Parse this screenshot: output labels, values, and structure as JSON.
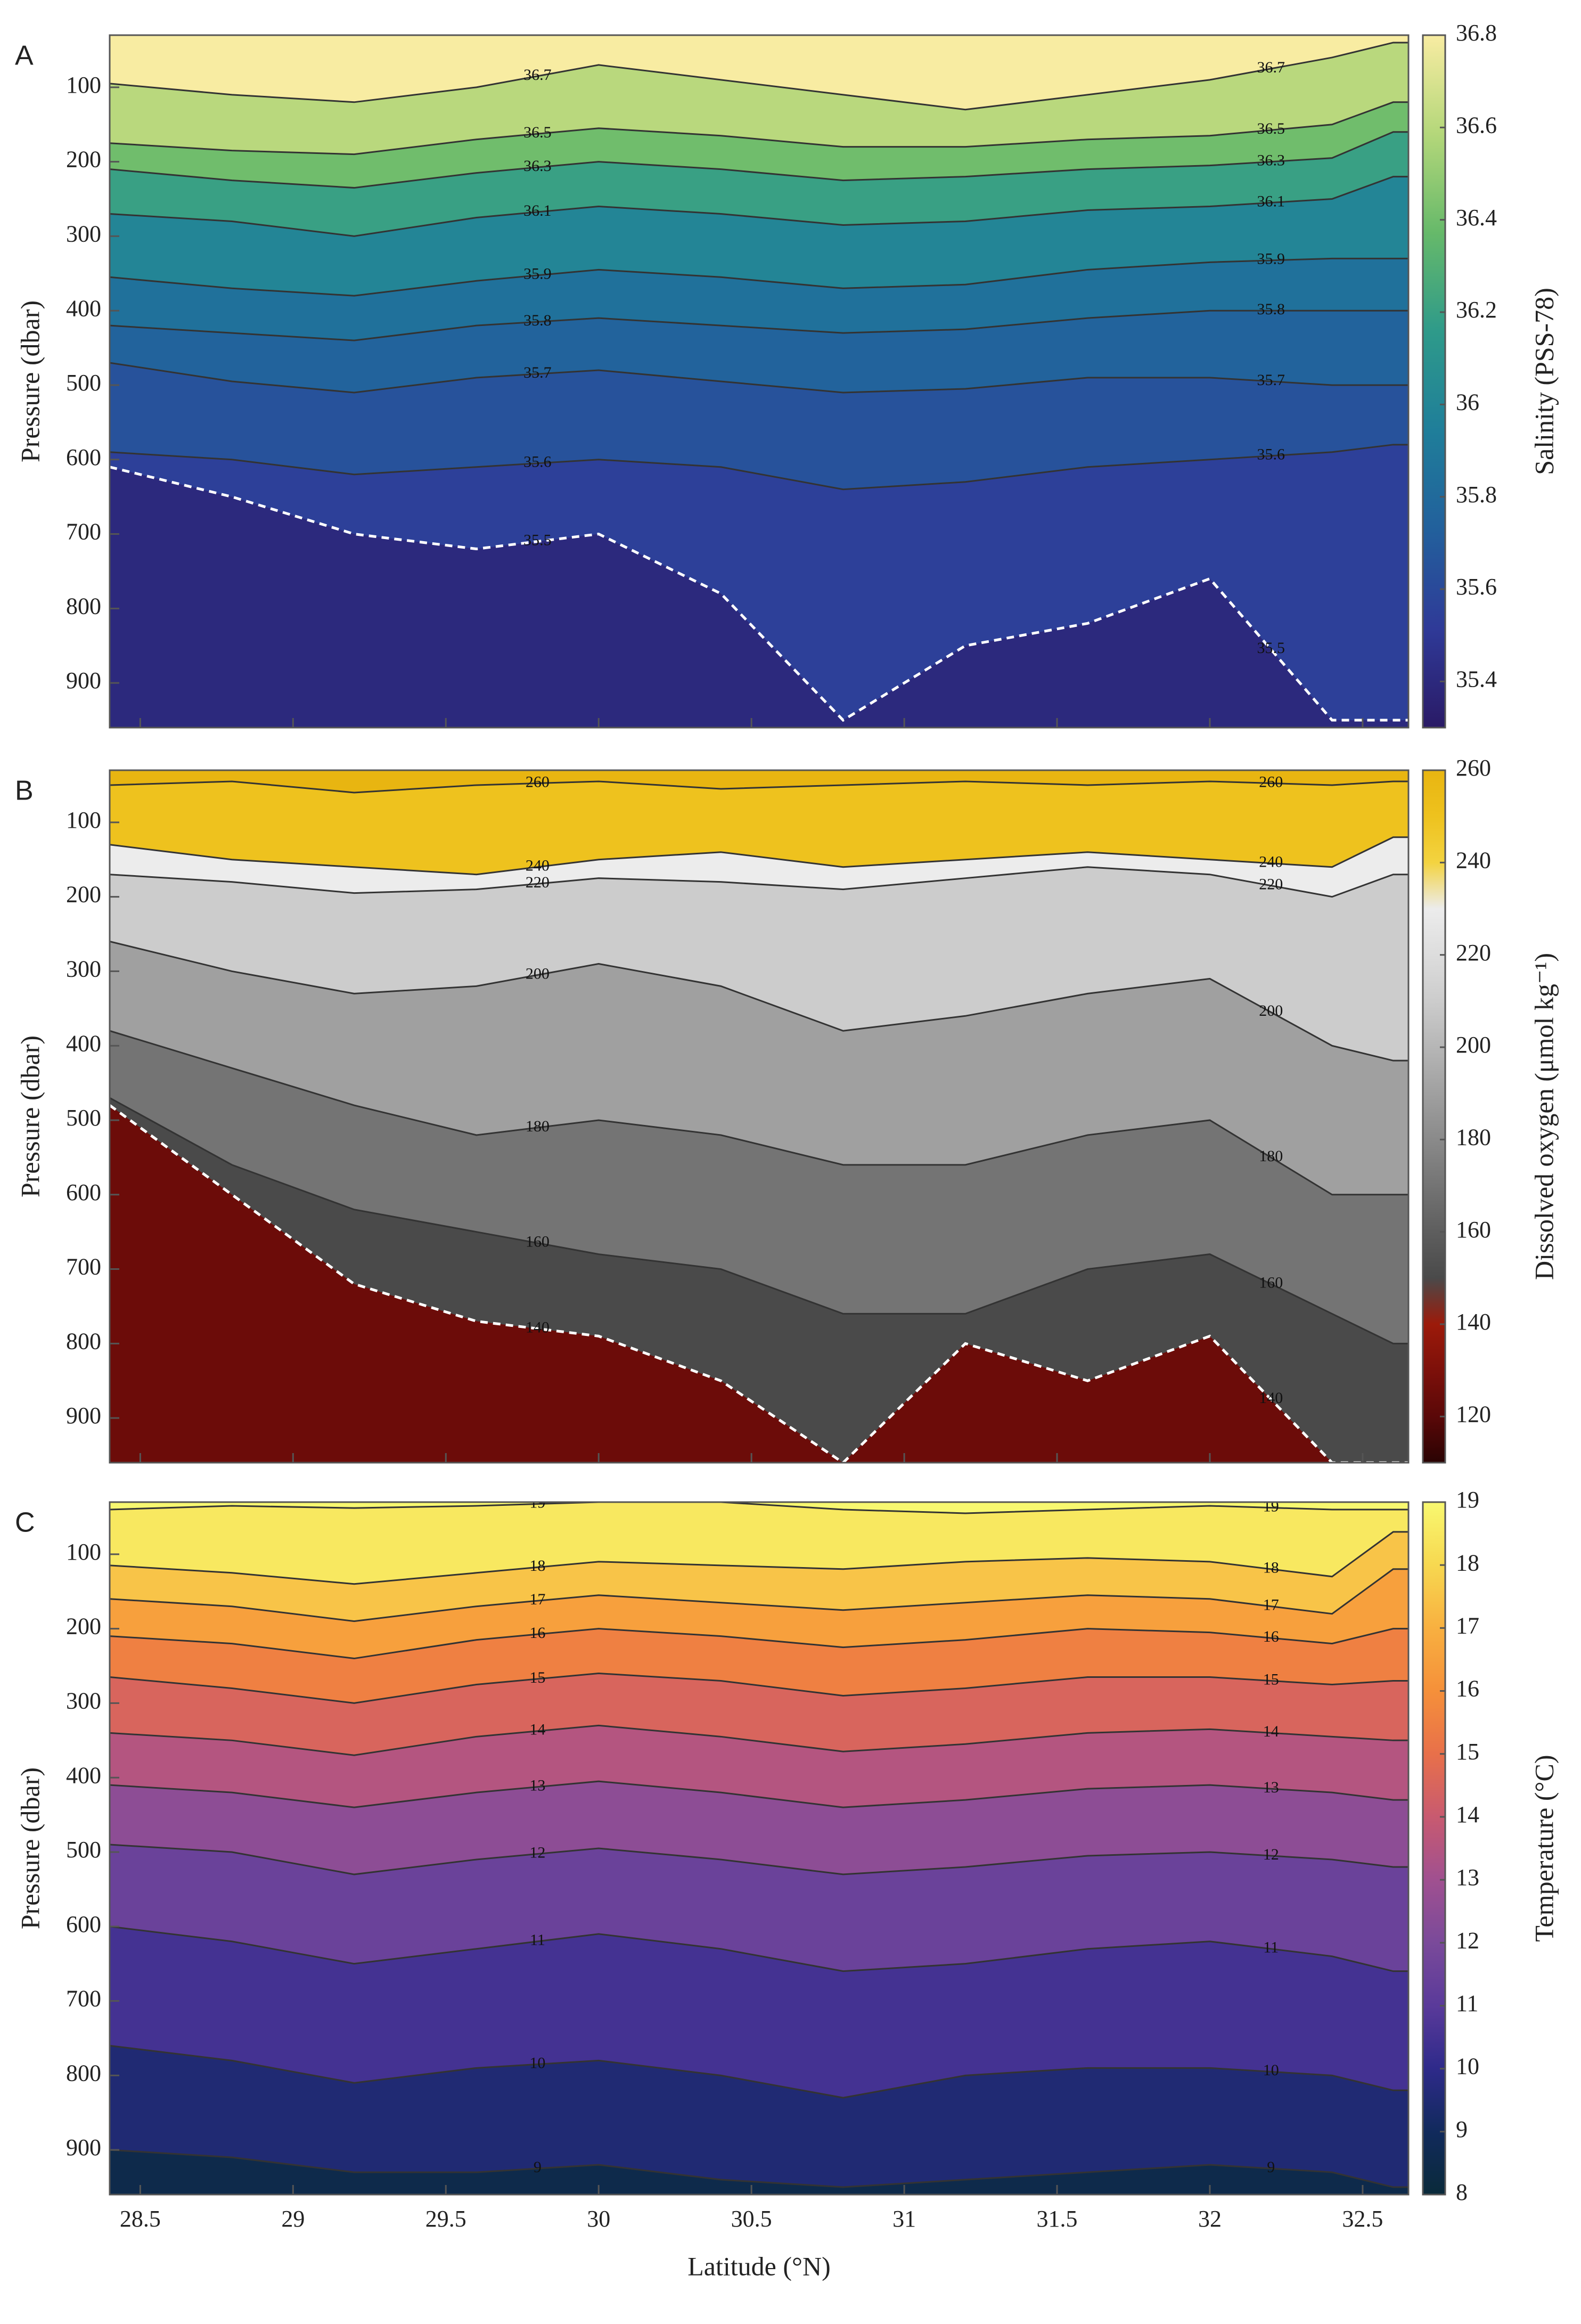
{
  "chart_data": [
    {
      "type": "contour",
      "panel_label": "A",
      "ylabel": "Pressure (dbar)",
      "clabel": "Salinity (PSS-78)",
      "x": [
        28.4,
        28.8,
        29.2,
        29.6,
        30.0,
        30.4,
        30.8,
        31.2,
        31.6,
        32.0,
        32.4,
        32.6
      ],
      "xlim": [
        28.4,
        32.65
      ],
      "xticks": [
        28.5,
        29,
        29.5,
        30,
        30.5,
        31,
        31.5,
        32,
        32.5
      ],
      "show_xticklabels": false,
      "ylim": [
        30,
        960
      ],
      "y_inverted": true,
      "yticks": [
        100,
        200,
        300,
        400,
        500,
        600,
        700,
        800,
        900
      ],
      "clim": [
        35.3,
        36.8
      ],
      "cticks": [
        35.4,
        35.6,
        35.8,
        36,
        36.2,
        36.4,
        36.6,
        36.8
      ],
      "colormap": [
        "#2a1a66",
        "#2f3a98",
        "#22609c",
        "#1f7e9a",
        "#2e9a8a",
        "#66b96a",
        "#b4d77a",
        "#f8eca2"
      ],
      "contours": [
        {
          "level": 36.7,
          "dashed": false,
          "values": [
            95,
            110,
            120,
            100,
            70,
            90,
            110,
            130,
            110,
            90,
            60,
            40
          ]
        },
        {
          "level": 36.5,
          "dashed": false,
          "values": [
            175,
            185,
            190,
            170,
            155,
            165,
            180,
            180,
            170,
            165,
            150,
            120
          ]
        },
        {
          "level": 36.3,
          "dashed": false,
          "values": [
            210,
            225,
            235,
            215,
            200,
            210,
            225,
            220,
            210,
            205,
            195,
            160
          ]
        },
        {
          "level": 36.1,
          "dashed": false,
          "values": [
            270,
            280,
            300,
            275,
            260,
            270,
            285,
            280,
            265,
            260,
            250,
            220
          ]
        },
        {
          "level": 35.9,
          "dashed": false,
          "values": [
            355,
            370,
            380,
            360,
            345,
            355,
            370,
            365,
            345,
            335,
            330,
            330
          ]
        },
        {
          "level": 35.8,
          "dashed": false,
          "values": [
            420,
            430,
            440,
            420,
            410,
            420,
            430,
            425,
            410,
            400,
            400,
            400
          ]
        },
        {
          "level": 35.7,
          "dashed": false,
          "values": [
            470,
            495,
            510,
            490,
            480,
            495,
            510,
            505,
            490,
            490,
            500,
            500
          ]
        },
        {
          "level": 35.6,
          "dashed": false,
          "values": [
            590,
            600,
            620,
            610,
            600,
            610,
            640,
            630,
            610,
            600,
            590,
            580
          ]
        },
        {
          "level": 35.5,
          "dashed": true,
          "values": [
            610,
            650,
            700,
            720,
            700,
            780,
            950,
            850,
            820,
            760,
            950,
            950
          ]
        }
      ]
    },
    {
      "type": "contour",
      "panel_label": "B",
      "ylabel": "Pressure (dbar)",
      "clabel": "Dissolved oxygen (μmol kg⁻¹)",
      "x": [
        28.4,
        28.8,
        29.2,
        29.6,
        30.0,
        30.4,
        30.8,
        31.2,
        31.6,
        32.0,
        32.4,
        32.6
      ],
      "xlim": [
        28.4,
        32.65
      ],
      "xticks": [
        28.5,
        29,
        29.5,
        30,
        30.5,
        31,
        31.5,
        32,
        32.5
      ],
      "show_xticklabels": false,
      "ylim": [
        30,
        960
      ],
      "y_inverted": true,
      "yticks": [
        100,
        200,
        300,
        400,
        500,
        600,
        700,
        800,
        900
      ],
      "clim": [
        110,
        260
      ],
      "cticks": [
        120,
        140,
        160,
        180,
        200,
        220,
        240,
        260
      ],
      "colormap": [
        "#2a0303",
        "#5a0808",
        "#7d100a",
        "#9c1a0a",
        "#4a4a4a",
        "#5e5e5e",
        "#747474",
        "#8a8a8a",
        "#a0a0a0",
        "#b6b6b6",
        "#cccccc",
        "#dddddd",
        "#ececec",
        "#f3d340",
        "#eec21e",
        "#e8b511"
      ],
      "contours": [
        {
          "level": 260,
          "dashed": false,
          "values": [
            50,
            45,
            60,
            50,
            45,
            55,
            50,
            45,
            50,
            45,
            50,
            45
          ]
        },
        {
          "level": 240,
          "dashed": false,
          "values": [
            130,
            150,
            160,
            170,
            150,
            140,
            160,
            150,
            140,
            150,
            160,
            120
          ]
        },
        {
          "level": 220,
          "dashed": false,
          "values": [
            170,
            180,
            195,
            190,
            175,
            180,
            190,
            175,
            160,
            170,
            200,
            170
          ]
        },
        {
          "level": 200,
          "dashed": false,
          "values": [
            260,
            300,
            330,
            320,
            290,
            320,
            380,
            360,
            330,
            310,
            400,
            420
          ]
        },
        {
          "level": 180,
          "dashed": false,
          "values": [
            380,
            430,
            480,
            520,
            500,
            520,
            560,
            560,
            520,
            500,
            600,
            600
          ]
        },
        {
          "level": 160,
          "dashed": false,
          "values": [
            470,
            560,
            620,
            650,
            680,
            700,
            760,
            760,
            700,
            680,
            760,
            800
          ]
        },
        {
          "level": 140,
          "dashed": true,
          "values": [
            480,
            600,
            720,
            770,
            790,
            850,
            960,
            800,
            850,
            790,
            960,
            960
          ]
        }
      ]
    },
    {
      "type": "contour",
      "panel_label": "C",
      "ylabel": "Pressure (dbar)",
      "clabel": "Temperature (°C)",
      "xlabel": "Latitude (°N)",
      "x": [
        28.4,
        28.8,
        29.2,
        29.6,
        30.0,
        30.4,
        30.8,
        31.2,
        31.6,
        32.0,
        32.4,
        32.6
      ],
      "xlim": [
        28.4,
        32.65
      ],
      "xticks": [
        28.5,
        29,
        29.5,
        30,
        30.5,
        31,
        31.5,
        32,
        32.5
      ],
      "show_xticklabels": true,
      "ylim": [
        30,
        960
      ],
      "y_inverted": true,
      "yticks": [
        100,
        200,
        300,
        400,
        500,
        600,
        700,
        800,
        900
      ],
      "clim": [
        8,
        19
      ],
      "cticks": [
        8,
        9,
        10,
        11,
        12,
        13,
        14,
        15,
        16,
        17,
        18,
        19
      ],
      "colormap": [
        "#0a2a3a",
        "#112a5c",
        "#2e2a8a",
        "#5a3a9a",
        "#7a4a9a",
        "#a05090",
        "#c85a70",
        "#e8704a",
        "#f5903a",
        "#f8b040",
        "#f7d850",
        "#f8f870"
      ],
      "contours": [
        {
          "level": 19,
          "dashed": false,
          "values": [
            40,
            35,
            38,
            35,
            30,
            30,
            40,
            45,
            40,
            35,
            40,
            40
          ]
        },
        {
          "level": 18,
          "dashed": false,
          "values": [
            115,
            125,
            140,
            125,
            110,
            115,
            120,
            110,
            105,
            110,
            130,
            70
          ]
        },
        {
          "level": 17,
          "dashed": false,
          "values": [
            160,
            170,
            190,
            170,
            155,
            165,
            175,
            165,
            155,
            160,
            180,
            120
          ]
        },
        {
          "level": 16,
          "dashed": false,
          "values": [
            210,
            220,
            240,
            215,
            200,
            210,
            225,
            215,
            200,
            205,
            220,
            200
          ]
        },
        {
          "level": 15,
          "dashed": false,
          "values": [
            265,
            280,
            300,
            275,
            260,
            270,
            290,
            280,
            265,
            265,
            275,
            270
          ]
        },
        {
          "level": 14,
          "dashed": false,
          "values": [
            340,
            350,
            370,
            345,
            330,
            345,
            365,
            355,
            340,
            335,
            345,
            350
          ]
        },
        {
          "level": 13,
          "dashed": false,
          "values": [
            410,
            420,
            440,
            420,
            405,
            420,
            440,
            430,
            415,
            410,
            420,
            430
          ]
        },
        {
          "level": 12,
          "dashed": false,
          "values": [
            490,
            500,
            530,
            510,
            495,
            510,
            530,
            520,
            505,
            500,
            510,
            520
          ]
        },
        {
          "level": 11,
          "dashed": false,
          "values": [
            600,
            620,
            650,
            630,
            610,
            630,
            660,
            650,
            630,
            620,
            640,
            660
          ]
        },
        {
          "level": 10,
          "dashed": false,
          "values": [
            760,
            780,
            810,
            790,
            780,
            800,
            830,
            800,
            790,
            790,
            800,
            820
          ]
        },
        {
          "level": 9,
          "dashed": false,
          "values": [
            900,
            910,
            930,
            930,
            920,
            940,
            950,
            940,
            930,
            920,
            930,
            950
          ]
        }
      ]
    }
  ]
}
